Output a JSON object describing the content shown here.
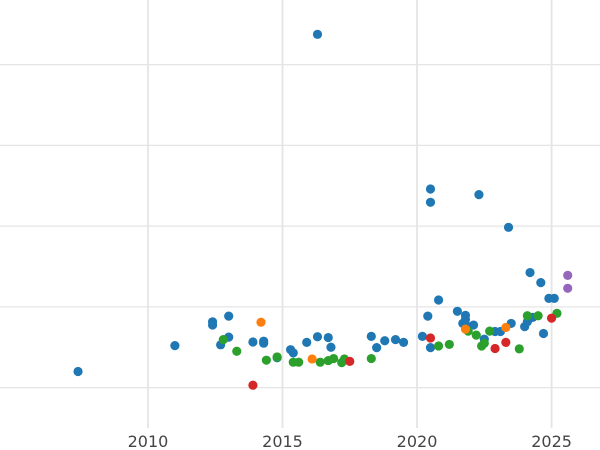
{
  "chart_data": {
    "type": "scatter",
    "title": "",
    "xlabel": "",
    "ylabel": "",
    "xlim": [
      2004.5,
      2026.8
    ],
    "ylim": [
      0,
      10.6
    ],
    "x_ticks": [
      2010,
      2015,
      2020,
      2025
    ],
    "x_tick_labels": [
      "2010",
      "2015",
      "2020",
      "2025"
    ],
    "y_gridlines": [
      1,
      3,
      5,
      7,
      9
    ],
    "grid": true,
    "legend": "none",
    "series": [
      {
        "color": "#1f77b4",
        "x": [
          2007.4,
          2011.0,
          2012.4,
          2012.4,
          2012.7,
          2013.0,
          2013.0,
          2013.9,
          2014.3,
          2014.3,
          2014.8,
          2015.3,
          2015.4,
          2015.9,
          2016.3,
          2016.3,
          2016.7,
          2016.8,
          2018.3,
          2018.5,
          2018.8,
          2019.2,
          2019.5,
          2020.2,
          2020.4,
          2020.5,
          2020.5,
          2020.5,
          2020.8,
          2021.5,
          2021.7,
          2021.8,
          2021.8,
          2021.9,
          2022.1,
          2022.3,
          2022.5,
          2022.9,
          2023.1,
          2023.4,
          2023.5,
          2024.0,
          2024.1,
          2024.2,
          2024.3,
          2024.6,
          2024.7,
          2024.9,
          2025.1
        ],
        "y": [
          1.4,
          2.04,
          2.55,
          2.63,
          2.06,
          2.25,
          2.77,
          2.13,
          2.1,
          2.15,
          1.74,
          1.94,
          1.86,
          2.12,
          2.26,
          9.75,
          2.24,
          2.0,
          2.27,
          1.99,
          2.16,
          2.19,
          2.12,
          2.27,
          2.77,
          5.92,
          1.99,
          5.59,
          3.17,
          2.89,
          2.59,
          2.69,
          2.79,
          2.51,
          2.55,
          5.78,
          2.2,
          2.39,
          2.39,
          4.97,
          2.59,
          2.51,
          2.63,
          3.85,
          2.74,
          3.6,
          2.34,
          3.21,
          3.21
        ]
      },
      {
        "color": "#2ca02c",
        "x": [
          2012.8,
          2013.3,
          2014.4,
          2014.8,
          2015.4,
          2015.6,
          2016.4,
          2016.7,
          2016.9,
          2017.2,
          2017.3,
          2018.3,
          2020.8,
          2021.2,
          2021.9,
          2022.2,
          2022.4,
          2022.5,
          2022.7,
          2023.8,
          2024.1,
          2024.5,
          2025.2
        ],
        "y": [
          2.19,
          1.9,
          1.68,
          1.76,
          1.63,
          1.63,
          1.63,
          1.67,
          1.72,
          1.62,
          1.71,
          1.72,
          2.03,
          2.07,
          2.4,
          2.3,
          2.03,
          2.1,
          2.4,
          1.96,
          2.78,
          2.78,
          2.84
        ]
      },
      {
        "color": "#ff7f0e",
        "x": [
          2014.2,
          2016.1,
          2021.8,
          2023.3
        ],
        "y": [
          2.62,
          1.71,
          2.45,
          2.49
        ]
      },
      {
        "color": "#d62728",
        "x": [
          2013.9,
          2017.5,
          2020.5,
          2022.9,
          2023.3,
          2025.0
        ],
        "y": [
          1.06,
          1.65,
          2.23,
          1.97,
          2.12,
          2.72
        ]
      },
      {
        "color": "#9467bd",
        "x": [
          2025.6,
          2025.6
        ],
        "y": [
          3.46,
          3.78
        ]
      }
    ]
  }
}
